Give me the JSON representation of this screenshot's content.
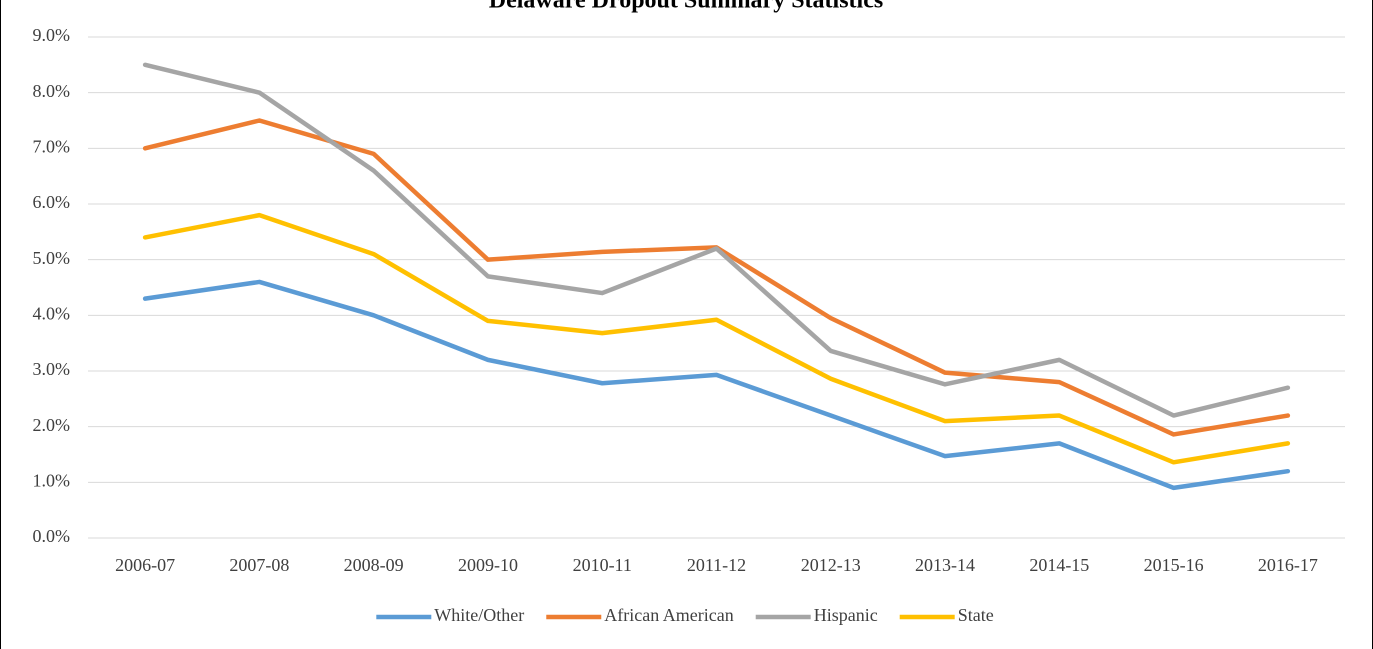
{
  "chart_data": {
    "type": "line",
    "title": "Delaware Dropout Summary Statistics",
    "categories": [
      "2006-07",
      "2007-08",
      "2008-09",
      "2009-10",
      "2010-11",
      "2011-12",
      "2012-13",
      "2013-14",
      "2014-15",
      "2015-16",
      "2016-17"
    ],
    "series": [
      {
        "name": "White/Other",
        "color": "#5b9bd5",
        "values": [
          4.3,
          4.6,
          4.0,
          3.2,
          2.78,
          2.93,
          2.2,
          1.47,
          1.7,
          0.9,
          1.2
        ]
      },
      {
        "name": "African American",
        "color": "#ed7d31",
        "values": [
          7.0,
          7.5,
          6.9,
          5.0,
          5.14,
          5.22,
          3.95,
          2.97,
          2.8,
          1.86,
          2.2
        ]
      },
      {
        "name": "Hispanic",
        "color": "#a5a5a5",
        "values": [
          8.5,
          8.0,
          6.6,
          4.7,
          4.4,
          5.2,
          3.36,
          2.76,
          3.2,
          2.2,
          2.7
        ]
      },
      {
        "name": "State",
        "color": "#ffc000",
        "values": [
          5.4,
          5.8,
          5.1,
          3.9,
          3.68,
          3.92,
          2.86,
          2.1,
          2.2,
          1.36,
          1.7
        ]
      }
    ],
    "ylim": [
      0,
      9
    ],
    "yticks": [
      {
        "value": 0,
        "label": "0.0%"
      },
      {
        "value": 1,
        "label": "1.0%"
      },
      {
        "value": 2,
        "label": "2.0%"
      },
      {
        "value": 3,
        "label": "3.0%"
      },
      {
        "value": 4,
        "label": "4.0%"
      },
      {
        "value": 5,
        "label": "5.0%"
      },
      {
        "value": 6,
        "label": "6.0%"
      },
      {
        "value": 7,
        "label": "7.0%"
      },
      {
        "value": 8,
        "label": "8.0%"
      },
      {
        "value": 9,
        "label": "9.0%"
      }
    ],
    "grid": true,
    "legend": "bottom"
  }
}
